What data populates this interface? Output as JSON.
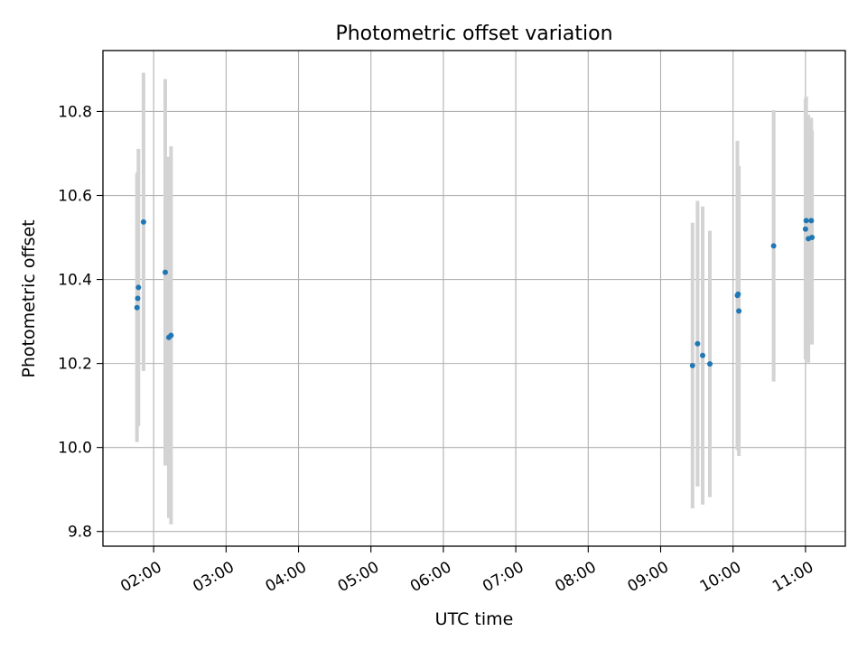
{
  "chart_data": {
    "type": "scatter",
    "title": "Photometric offset variation",
    "xlabel": "UTC time",
    "ylabel": "Photometric offset",
    "x_unit": "hour",
    "xlim": [
      1.3,
      11.55
    ],
    "ylim": [
      9.765,
      10.945
    ],
    "xticks": [
      2,
      3,
      4,
      5,
      6,
      7,
      8,
      9,
      10,
      11
    ],
    "xtick_labels": [
      "02:00",
      "03:00",
      "04:00",
      "05:00",
      "06:00",
      "07:00",
      "08:00",
      "09:00",
      "10:00",
      "11:00"
    ],
    "yticks": [
      9.8,
      10.0,
      10.2,
      10.4,
      10.6,
      10.8
    ],
    "ytick_labels": [
      "9.8",
      "10.0",
      "10.2",
      "10.4",
      "10.6",
      "10.8"
    ],
    "grid": true,
    "series": [
      {
        "marker_color": "#1f77b4",
        "errorbar_color": "#d3d3d3",
        "points": [
          {
            "x": 1.77,
            "y": 10.333,
            "err": 0.32
          },
          {
            "x": 1.78,
            "y": 10.355,
            "err": 0.3
          },
          {
            "x": 1.79,
            "y": 10.381,
            "err": 0.33
          },
          {
            "x": 1.86,
            "y": 10.537,
            "err": 0.355
          },
          {
            "x": 2.16,
            "y": 10.417,
            "err": 0.46
          },
          {
            "x": 2.21,
            "y": 10.262,
            "err": 0.43
          },
          {
            "x": 2.24,
            "y": 10.267,
            "err": 0.45
          },
          {
            "x": 9.44,
            "y": 10.195,
            "err": 0.34
          },
          {
            "x": 9.51,
            "y": 10.247,
            "err": 0.34
          },
          {
            "x": 9.58,
            "y": 10.219,
            "err": 0.355
          },
          {
            "x": 9.68,
            "y": 10.199,
            "err": 0.317
          },
          {
            "x": 10.06,
            "y": 10.362,
            "err": 0.368
          },
          {
            "x": 10.07,
            "y": 10.365,
            "err": 0.3
          },
          {
            "x": 10.08,
            "y": 10.325,
            "err": 0.345
          },
          {
            "x": 10.56,
            "y": 10.48,
            "err": 0.323
          },
          {
            "x": 11.0,
            "y": 10.52,
            "err": 0.31
          },
          {
            "x": 11.01,
            "y": 10.54,
            "err": 0.295
          },
          {
            "x": 11.04,
            "y": 10.497,
            "err": 0.295
          },
          {
            "x": 11.08,
            "y": 10.54,
            "err": 0.245
          },
          {
            "x": 11.09,
            "y": 10.5,
            "err": 0.255
          }
        ]
      }
    ]
  }
}
